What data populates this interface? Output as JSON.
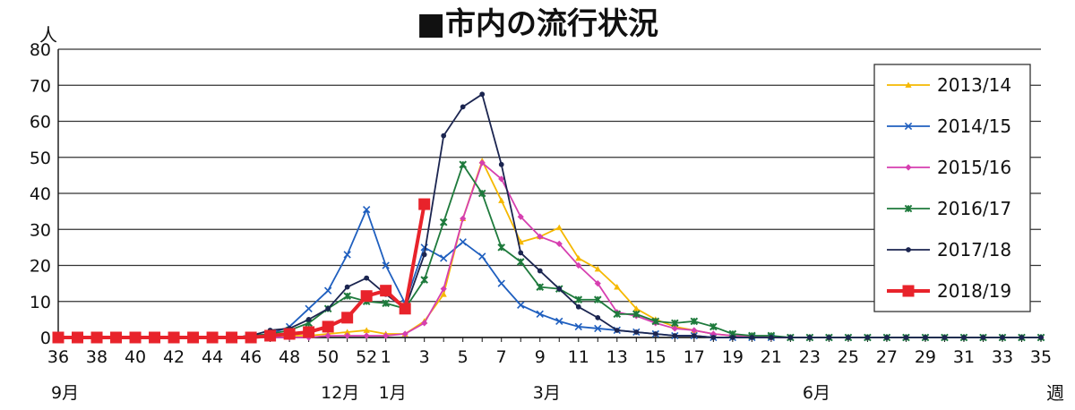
{
  "chart_data": {
    "type": "line",
    "title": "■市内の流行状況",
    "y_unit": "人",
    "x_unit": "週",
    "ylim": [
      0,
      80
    ],
    "y_ticks": [
      0,
      10,
      20,
      30,
      40,
      50,
      60,
      70,
      80
    ],
    "grid": "horizontal",
    "legend_position": "top-right",
    "weeks": [
      36,
      37,
      38,
      39,
      40,
      41,
      42,
      43,
      44,
      45,
      46,
      47,
      48,
      49,
      50,
      51,
      52,
      1,
      2,
      3,
      4,
      5,
      6,
      7,
      8,
      9,
      10,
      11,
      12,
      13,
      14,
      15,
      16,
      17,
      18,
      19,
      20,
      21,
      22,
      23,
      24,
      25,
      26,
      27,
      28,
      29,
      30,
      31,
      32,
      33,
      34,
      35
    ],
    "x_tick_labels": [
      "36",
      "38",
      "40",
      "42",
      "44",
      "46",
      "48",
      "50",
      "52",
      "1",
      "3",
      "5",
      "7",
      "9",
      "11",
      "13",
      "15",
      "17",
      "19",
      "21",
      "23",
      "25",
      "27",
      "29",
      "31",
      "33",
      "35"
    ],
    "month_labels": [
      {
        "label": "9月",
        "week": 36
      },
      {
        "label": "12月",
        "week": 50
      },
      {
        "label": "1月",
        "week": 1
      },
      {
        "label": "3月",
        "week": 9
      },
      {
        "label": "6月",
        "week": 23
      }
    ],
    "series": [
      {
        "name": "2013/14",
        "color": "#f5b800",
        "marker": "triangle",
        "values": [
          0,
          0,
          0,
          0,
          0,
          0,
          0,
          0,
          0,
          0,
          0.5,
          0.5,
          0.5,
          0.5,
          1,
          1.5,
          2,
          1,
          1,
          4.5,
          12,
          33,
          49,
          38,
          26.5,
          28,
          30.5,
          22,
          19,
          14,
          8,
          5,
          3,
          2,
          1,
          0.5,
          0.5,
          0,
          0,
          0,
          0,
          0,
          0,
          0,
          0,
          0,
          0,
          0,
          0,
          0,
          0,
          0
        ]
      },
      {
        "name": "2014/15",
        "color": "#1f5fbf",
        "marker": "x",
        "values": [
          0,
          0,
          0,
          0,
          0,
          0,
          0,
          0,
          0,
          0,
          0.5,
          1,
          3,
          8,
          13,
          23,
          35.5,
          20,
          9.5,
          25,
          22,
          26.5,
          22.5,
          15,
          9,
          6.5,
          4.5,
          3,
          2.5,
          2,
          1.5,
          1,
          0.5,
          0.5,
          0,
          0,
          0,
          0,
          0,
          0,
          0,
          0,
          0,
          0,
          0,
          0,
          0,
          0,
          0,
          0,
          0,
          0
        ]
      },
      {
        "name": "2015/16",
        "color": "#d63fb0",
        "marker": "diamond",
        "values": [
          0,
          0,
          0,
          0,
          0,
          0,
          0,
          0,
          0,
          0,
          0,
          0,
          0,
          0,
          0.5,
          0.5,
          0.5,
          0.5,
          1,
          4,
          13.5,
          33,
          48.5,
          44,
          33.5,
          28,
          26,
          20,
          15,
          7,
          6,
          4,
          2.5,
          2,
          1,
          0.5,
          0.5,
          0,
          0,
          0,
          0,
          0,
          0,
          0,
          0,
          0,
          0,
          0,
          0,
          0,
          0,
          0
        ]
      },
      {
        "name": "2016/17",
        "color": "#1e7a3c",
        "marker": "asterisk",
        "values": [
          0,
          0,
          0,
          0,
          0,
          0,
          0,
          0,
          0,
          0,
          0.5,
          1,
          2,
          4,
          8,
          11.5,
          10,
          9.5,
          8,
          16,
          32,
          48,
          40,
          25,
          21,
          14,
          13.5,
          10.5,
          10.5,
          6.5,
          6.5,
          4.5,
          4,
          4.5,
          3,
          1,
          0.5,
          0.5,
          0,
          0,
          0,
          0,
          0,
          0,
          0,
          0,
          0,
          0,
          0,
          0,
          0,
          0
        ]
      },
      {
        "name": "2017/18",
        "color": "#1b2550",
        "marker": "circle",
        "values": [
          0,
          0,
          0,
          0,
          0,
          0,
          0,
          0,
          0,
          0,
          0.5,
          2,
          2.5,
          5,
          8,
          14,
          16.5,
          12,
          8,
          23,
          56,
          64,
          67.5,
          48,
          23.5,
          18.5,
          13.5,
          8.5,
          5.5,
          2,
          1.5,
          1,
          0.5,
          0.5,
          0,
          0,
          0,
          0,
          0,
          0,
          0,
          0,
          0,
          0,
          0,
          0,
          0,
          0,
          0,
          0,
          0,
          0
        ]
      },
      {
        "name": "2018/19",
        "color": "#e8232b",
        "marker": "square",
        "values": [
          0,
          0,
          0,
          0,
          0,
          0,
          0,
          0,
          0,
          0,
          0,
          0.5,
          1,
          1.5,
          3,
          5.5,
          11.5,
          13,
          8,
          37
        ]
      }
    ]
  }
}
